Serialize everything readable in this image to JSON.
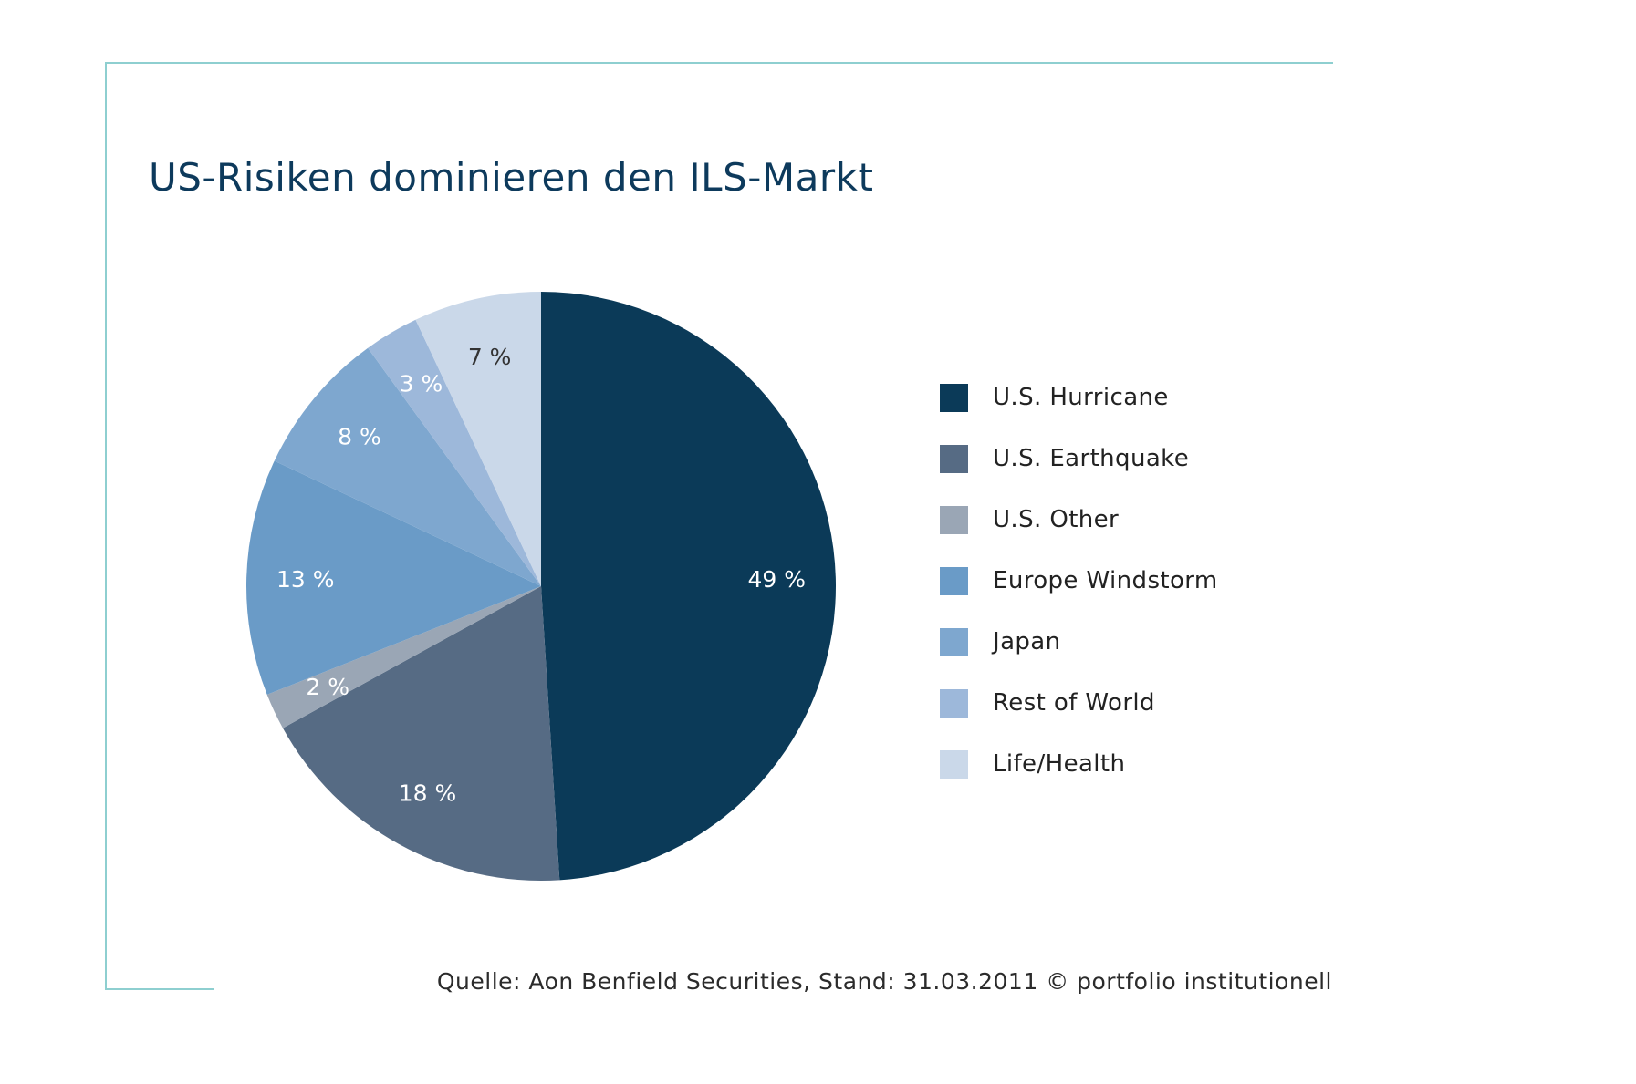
{
  "title": "US-Risiken dominieren den ILS-Markt",
  "source": "Quelle: Aon Benfield Securities, Stand: 31.03.2011 © portfolio institutionell",
  "colors": {
    "frame": "#8ecfd0",
    "title": "#0d3a5c"
  },
  "chart_data": {
    "type": "pie",
    "title": "US-Risiken dominieren den ILS-Markt",
    "legend_position": "right",
    "slices": [
      {
        "label": "U.S. Hurricane",
        "value": 49,
        "display": "49 %",
        "color": "#0b3a58",
        "label_color": "#ffffff"
      },
      {
        "label": "U.S. Earthquake",
        "value": 18,
        "display": "18 %",
        "color": "#566b84",
        "label_color": "#ffffff"
      },
      {
        "label": "U.S. Other",
        "value": 2,
        "display": "2 %",
        "color": "#9aa6b5",
        "label_color": "#ffffff"
      },
      {
        "label": "Europe Windstorm",
        "value": 13,
        "display": "13 %",
        "color": "#6a9bc7",
        "label_color": "#ffffff"
      },
      {
        "label": "Japan",
        "value": 8,
        "display": "8 %",
        "color": "#7ea7cf",
        "label_color": "#ffffff"
      },
      {
        "label": "Rest of World",
        "value": 3,
        "display": "3 %",
        "color": "#9db8da",
        "label_color": "#ffffff"
      },
      {
        "label": "Life/Health",
        "value": 7,
        "display": "7 %",
        "color": "#cad8e9",
        "label_color": "#333333"
      }
    ]
  }
}
